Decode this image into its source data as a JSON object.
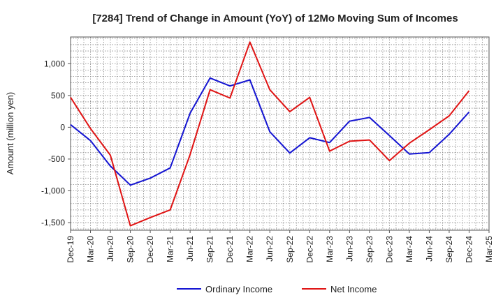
{
  "chart_data": {
    "type": "line",
    "title": "[7284]  Trend of Change in Amount (YoY) of 12Mo Moving Sum of Incomes",
    "xlabel": "",
    "ylabel": "Amount (million yen)",
    "categories": [
      "Dec-19",
      "Mar-20",
      "Jun-20",
      "Sep-20",
      "Dec-20",
      "Mar-21",
      "Jun-21",
      "Sep-21",
      "Dec-21",
      "Mar-22",
      "Jun-22",
      "Sep-22",
      "Dec-22",
      "Mar-23",
      "Jun-23",
      "Sep-23",
      "Dec-23",
      "Mar-24",
      "Jun-24",
      "Sep-24",
      "Dec-24",
      "Mar-25"
    ],
    "yticks": [
      1000,
      500,
      0,
      -500,
      -1000,
      -1500
    ],
    "ytick_labels": [
      "1,000",
      "500",
      "0",
      "-500",
      "-1,000",
      "-1,500"
    ],
    "ylim": [
      -1620,
      1420
    ],
    "grid": true,
    "legend_position": "bottom",
    "series": [
      {
        "name": "Ordinary Income",
        "color": "#1414d2",
        "values": [
          40,
          -210,
          -610,
          -910,
          -800,
          -640,
          220,
          775,
          650,
          745,
          -70,
          -405,
          -165,
          -240,
          95,
          155,
          -130,
          -420,
          -400,
          -110,
          240,
          null
        ]
      },
      {
        "name": "Net Income",
        "color": "#e01414",
        "values": [
          470,
          -20,
          -440,
          -1550,
          -1420,
          -1300,
          -430,
          590,
          460,
          1340,
          590,
          245,
          470,
          -375,
          -220,
          -200,
          -525,
          -250,
          -40,
          180,
          575,
          null
        ]
      }
    ]
  }
}
